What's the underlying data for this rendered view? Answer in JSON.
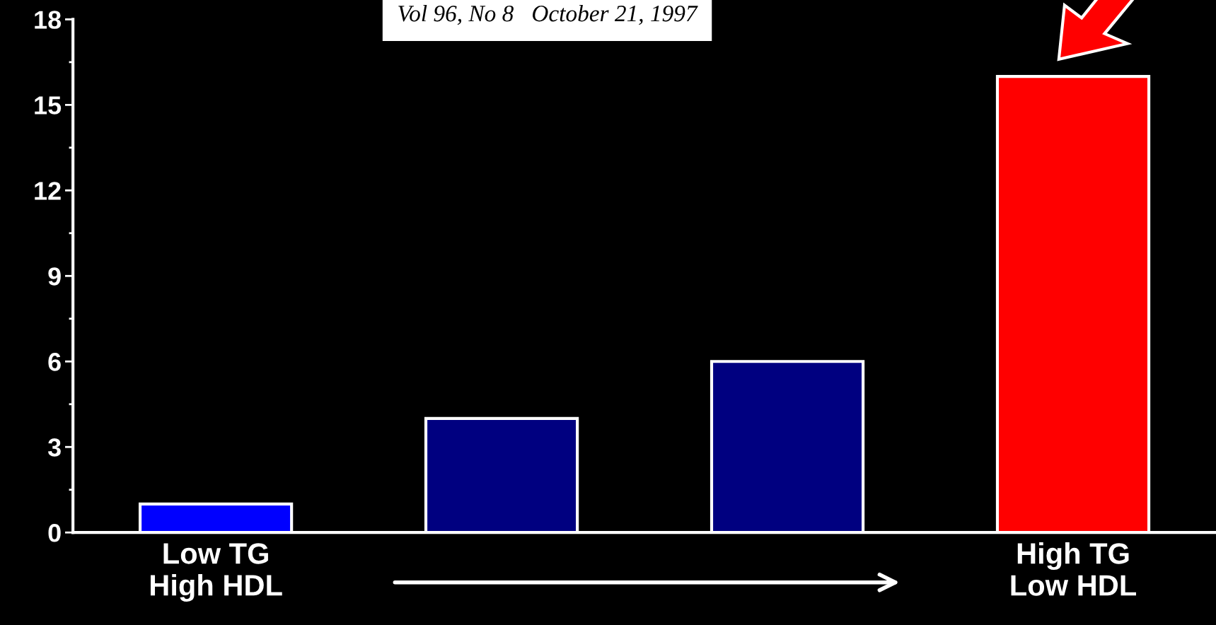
{
  "chart_data": {
    "type": "bar",
    "categories": [
      "Low TG\nHigh HDL",
      null,
      null,
      "High TG\nLow HDL"
    ],
    "values": [
      1,
      4,
      6,
      16
    ],
    "colors": [
      "#0000ff",
      "#000080",
      "#000080",
      "#ff0000"
    ],
    "ylim": [
      0,
      18
    ],
    "yticks": [
      0,
      3,
      6,
      9,
      12,
      15,
      18
    ],
    "grid": false,
    "annotations": [
      "Vol 96, No 8   October 21, 1997"
    ]
  }
}
